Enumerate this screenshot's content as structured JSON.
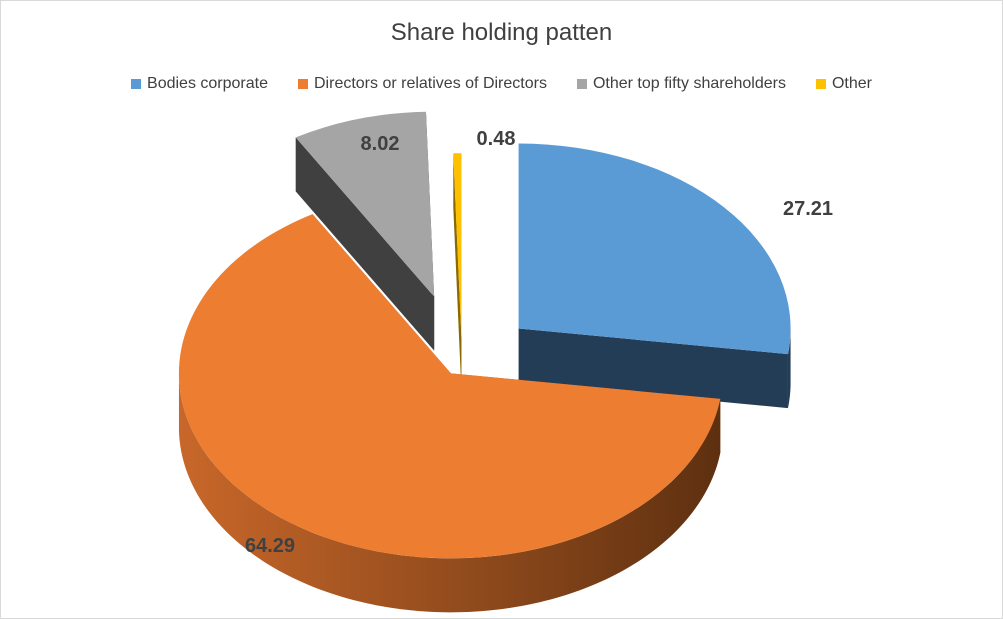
{
  "chart_data": {
    "type": "pie",
    "title": "Share holding patten",
    "legend_position": "top",
    "categories": [
      "Bodies corporate",
      "Directors or relatives of Directors",
      "Other top fifty shareholders",
      "Other"
    ],
    "values": [
      27.21,
      64.29,
      8.02,
      0.48
    ],
    "data_labels": [
      "27.21",
      "64.29",
      "8.02",
      "0.48"
    ],
    "colors": [
      "#5b9bd5",
      "#ed7d31",
      "#a5a5a5",
      "#ffc000"
    ],
    "exploded": true,
    "style": "3d"
  }
}
